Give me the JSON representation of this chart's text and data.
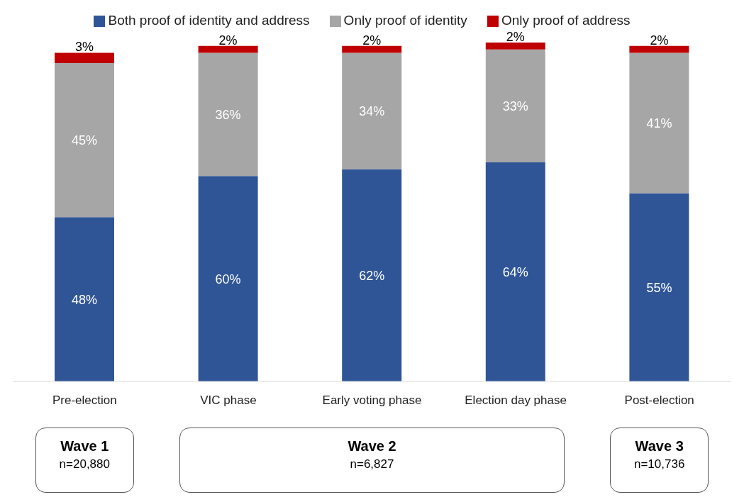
{
  "chart_data": {
    "type": "bar",
    "stacked": true,
    "categories": [
      "Pre-election",
      "VIC phase",
      "Early voting phase",
      "Election day phase",
      "Post-election"
    ],
    "series": [
      {
        "name": "Both proof of identity and address",
        "color": "#2f5597",
        "values": [
          48,
          60,
          62,
          64,
          55
        ],
        "value_labels": [
          "48%",
          "60%",
          "62%",
          "64%",
          "55%"
        ]
      },
      {
        "name": "Only proof of identity",
        "color": "#a6a6a6",
        "values": [
          45,
          36,
          34,
          33,
          41
        ],
        "value_labels": [
          "45%",
          "36%",
          "34%",
          "33%",
          "41%"
        ]
      },
      {
        "name": "Only proof of address",
        "color": "#c00000",
        "values": [
          3,
          2,
          2,
          2,
          2
        ],
        "value_labels": [
          "3%",
          "2%",
          "2%",
          "2%",
          "2%"
        ]
      }
    ],
    "legend": "top",
    "grid": false,
    "annotations": [
      "Wave 1",
      "n=20,880",
      "Wave 2",
      "n=6,827",
      "Wave 3",
      "n=10,736"
    ]
  }
}
